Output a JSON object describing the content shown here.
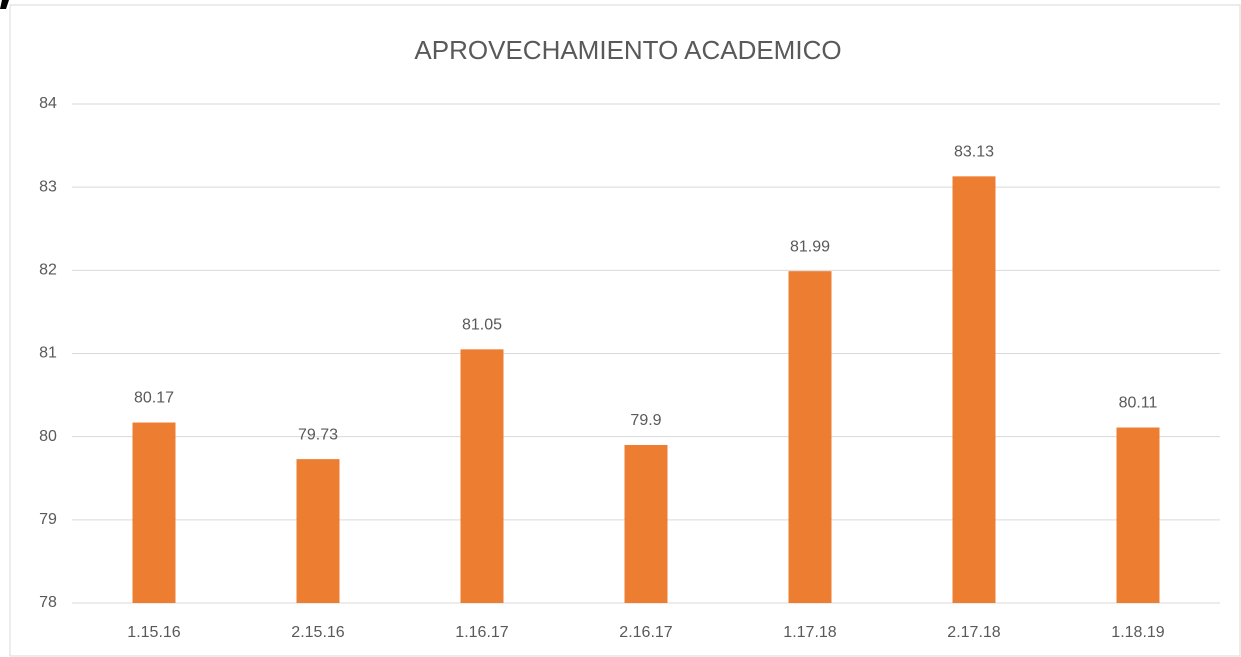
{
  "chart_data": {
    "type": "bar",
    "title": "APROVECHAMIENTO ACADEMICO",
    "categories": [
      "1.15.16",
      "2.15.16",
      "1.16.17",
      "2.16.17",
      "1.17.18",
      "2.17.18",
      "1.18.19"
    ],
    "values": [
      80.17,
      79.73,
      81.05,
      79.9,
      81.99,
      83.13,
      80.11
    ],
    "color": "#ed7d31",
    "ylim": [
      78,
      84
    ],
    "yticks": [
      78,
      79,
      80,
      81,
      82,
      83,
      84
    ],
    "grid": true
  }
}
